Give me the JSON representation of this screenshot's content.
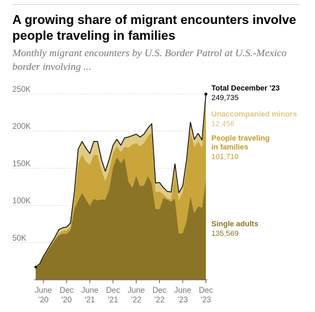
{
  "header": {
    "title": "A growing share of migrant encounters involve people traveling in families",
    "subtitle": "Monthly migrant encounters by U.S. Border Patrol at U.S.-Mexico border involving ..."
  },
  "chart_data": {
    "type": "area",
    "stacked": true,
    "x": [
      "Apr '20",
      "May '20",
      "Jun '20",
      "Jul '20",
      "Aug '20",
      "Sep '20",
      "Oct '20",
      "Nov '20",
      "Dec '20",
      "Jan '21",
      "Feb '21",
      "Mar '21",
      "Apr '21",
      "May '21",
      "Jun '21",
      "Jul '21",
      "Aug '21",
      "Sep '21",
      "Oct '21",
      "Nov '21",
      "Dec '21",
      "Jan '22",
      "Feb '22",
      "Mar '22",
      "Apr '22",
      "May '22",
      "Jun '22",
      "Jul '22",
      "Aug '22",
      "Sep '22",
      "Oct '22",
      "Nov '22",
      "Dec '22",
      "Jan '23",
      "Feb '23",
      "Mar '23",
      "Apr '23",
      "May '23",
      "Jun '23",
      "Jul '23",
      "Aug '23",
      "Sep '23",
      "Oct '23",
      "Nov '23",
      "Dec '23"
    ],
    "x_tick_labels": [
      {
        "month": "Jun '20",
        "line1": "June",
        "line2": "'20"
      },
      {
        "month": "Dec '20",
        "line1": "Dec",
        "line2": "'20"
      },
      {
        "month": "Jun '21",
        "line1": "June",
        "line2": "'21"
      },
      {
        "month": "Dec '21",
        "line1": "Dec",
        "line2": "'21"
      },
      {
        "month": "Jun '22",
        "line1": "June",
        "line2": "'22"
      },
      {
        "month": "Dec '22",
        "line1": "Dec",
        "line2": "'22"
      },
      {
        "month": "Jun '23",
        "line1": "June",
        "line2": "'23"
      },
      {
        "month": "Dec '23",
        "line1": "Dec",
        "line2": "'23"
      }
    ],
    "y_ticks": [
      {
        "value": 50000,
        "label": "50K"
      },
      {
        "value": 100000,
        "label": "100K"
      },
      {
        "value": 150000,
        "label": "150K"
      },
      {
        "value": 200000,
        "label": "200K"
      },
      {
        "value": 250000,
        "label": "250K"
      }
    ],
    "ylim": [
      0,
      250000
    ],
    "grid": true,
    "series": [
      {
        "name": "Single adults",
        "color": "#8c7426",
        "values": [
          16000,
          20000,
          30000,
          38000,
          46000,
          54000,
          60000,
          62000,
          62000,
          67000,
          95000,
          107000,
          117000,
          108000,
          100000,
          109000,
          107000,
          108000,
          108000,
          122000,
          152000,
          165000,
          157000,
          164000,
          132000,
          124000,
          140000,
          126000,
          127000,
          140000,
          130000,
          95000,
          95000,
          110000,
          108000,
          105000,
          109000,
          62000,
          63000,
          79000,
          113000,
          90000,
          99000,
          97000,
          135569
        ]
      },
      {
        "name": "People traveling in families",
        "color": "#c9a53a",
        "values": [
          400,
          500,
          700,
          1000,
          1400,
          1600,
          2500,
          4000,
          4500,
          5000,
          14000,
          50000,
          52000,
          51000,
          55000,
          59000,
          61000,
          40000,
          25000,
          26000,
          19000,
          15000,
          15000,
          15000,
          46000,
          58000,
          44000,
          54000,
          57000,
          53000,
          68000,
          23000,
          24000,
          5000,
          2000,
          3000,
          37000,
          45000,
          55000,
          73000,
          88000,
          89000,
          87000,
          81000,
          101710
        ]
      },
      {
        "name": "Unaccompanied minors",
        "color": "#e0cb85",
        "values": [
          700,
          700,
          1000,
          1200,
          1500,
          2000,
          5000,
          4000,
          4500,
          4500,
          9000,
          19000,
          17000,
          18000,
          15000,
          18000,
          18000,
          14000,
          13000,
          14000,
          10000,
          9000,
          9000,
          12000,
          14000,
          12000,
          12000,
          12000,
          12000,
          11000,
          12000,
          12000,
          12000,
          9000,
          9000,
          10000,
          10000,
          10000,
          8000,
          9000,
          11000,
          10000,
          11000,
          10000,
          12456
        ]
      }
    ],
    "total_line_color": "#000000",
    "annotations": {
      "total": {
        "label": "Total December '23",
        "value": "249,735"
      },
      "unaccompanied": {
        "label": "Unaccompanied minors",
        "value": "12,456",
        "color": "#dcc584"
      },
      "families": {
        "label": "People traveling in families",
        "value": "101,710",
        "color": "#c49a2c"
      },
      "single": {
        "label": "Single adults",
        "value": "135,569",
        "color": "#8c7426"
      }
    }
  }
}
